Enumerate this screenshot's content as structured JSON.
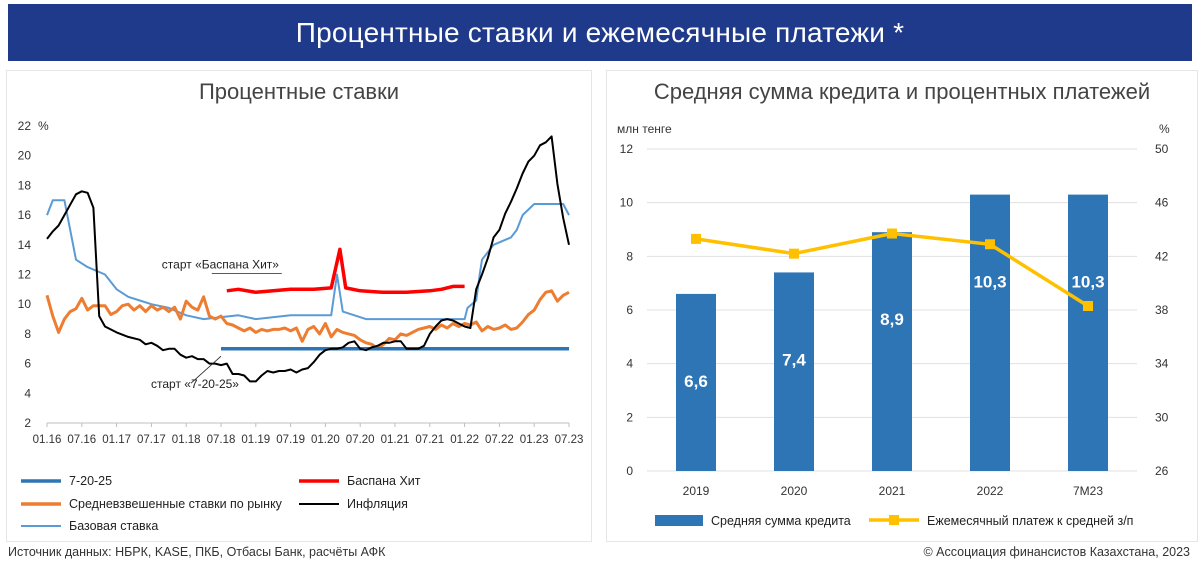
{
  "header": {
    "title": "Процентные ставки и ежемесячные платежи *"
  },
  "footer": {
    "source": "Источник данных: НБРК, KASE, ПКБ, Отбасы Банк, расчёты АФК",
    "copyright": "© Ассоциация финансистов Казахстана, 2023"
  },
  "colors": {
    "banner": "#1f3a8a",
    "seven_20_25": "#2e75b6",
    "baspana": "#ff0000",
    "market": "#ed7d31",
    "inflation": "#000000",
    "base_rate": "#5b9bd5",
    "bar": "#2e75b6",
    "payment": "#ffc000"
  },
  "chart_data": [
    {
      "type": "line",
      "title": "Процентные ставки",
      "unit_label": "%",
      "ylim": [
        2,
        22
      ],
      "yticks": [
        "2",
        "4",
        "6",
        "8",
        "10",
        "12",
        "14",
        "16",
        "18",
        "20",
        "22"
      ],
      "x_ticks": [
        "01.16",
        "07.16",
        "01.17",
        "07.17",
        "01.18",
        "07.18",
        "01.19",
        "07.19",
        "01.20",
        "07.20",
        "01.21",
        "07.21",
        "01.22",
        "07.22",
        "01.23",
        "07.23"
      ],
      "grid": false,
      "legend_position": "bottom",
      "annotations": [
        {
          "text": "старт «Баспана Хит»",
          "x": "08.18",
          "y": 11.4
        },
        {
          "text": "старт «7-20-25»",
          "x": "07.18",
          "y": 6.5
        }
      ],
      "series": [
        {
          "name": "7-20-25",
          "color_key": "seven_20_25",
          "points": [
            [
              30,
              7
            ],
            [
              90,
              7
            ]
          ]
        },
        {
          "name": "Баспана Хит",
          "color_key": "baspana",
          "points": [
            [
              31,
              10.9
            ],
            [
              33,
              11.0
            ],
            [
              36,
              10.8
            ],
            [
              39,
              10.9
            ],
            [
              42,
              11.0
            ],
            [
              46,
              11.0
            ],
            [
              49,
              11.1
            ],
            [
              50.5,
              13.7
            ],
            [
              51.5,
              11.1
            ],
            [
              54,
              10.9
            ],
            [
              58,
              10.8
            ],
            [
              62,
              10.8
            ],
            [
              66,
              10.9
            ],
            [
              68,
              11.0
            ],
            [
              70,
              11.2
            ],
            [
              72,
              11.2
            ]
          ]
        },
        {
          "name": "Средневзвешенные ставки по рынку",
          "color_key": "market",
          "points": [
            [
              0,
              10.6
            ],
            [
              1,
              9.2
            ],
            [
              2,
              8.1
            ],
            [
              3,
              9.0
            ],
            [
              4,
              9.5
            ],
            [
              5,
              9.7
            ],
            [
              6,
              10.4
            ],
            [
              7,
              9.6
            ],
            [
              8,
              9.9
            ],
            [
              10,
              9.9
            ],
            [
              11,
              9.3
            ],
            [
              12,
              9.5
            ],
            [
              13,
              9.9
            ],
            [
              14,
              10.0
            ],
            [
              15,
              9.6
            ],
            [
              16,
              9.9
            ],
            [
              17,
              9.5
            ],
            [
              18,
              9.9
            ],
            [
              19,
              9.6
            ],
            [
              20,
              9.8
            ],
            [
              21,
              9.5
            ],
            [
              22,
              9.8
            ],
            [
              23,
              9.0
            ],
            [
              24,
              10.2
            ],
            [
              25,
              9.8
            ],
            [
              26,
              9.6
            ],
            [
              27,
              10.5
            ],
            [
              28,
              9.2
            ],
            [
              29,
              9.0
            ],
            [
              30,
              9.2
            ],
            [
              31,
              8.7
            ],
            [
              32,
              8.6
            ],
            [
              33,
              8.4
            ],
            [
              34,
              8.2
            ],
            [
              35,
              8.4
            ],
            [
              36,
              8.1
            ],
            [
              37,
              8.3
            ],
            [
              38,
              8.2
            ],
            [
              39,
              8.3
            ],
            [
              40,
              8.3
            ],
            [
              41,
              8.4
            ],
            [
              42,
              8.2
            ],
            [
              43,
              8.4
            ],
            [
              44,
              7.5
            ],
            [
              45,
              8.3
            ],
            [
              46,
              8.5
            ],
            [
              47,
              8.0
            ],
            [
              48,
              8.7
            ],
            [
              49,
              7.8
            ],
            [
              50,
              8.3
            ],
            [
              51,
              8.1
            ],
            [
              52,
              8.0
            ],
            [
              53,
              7.9
            ],
            [
              54,
              7.6
            ],
            [
              55,
              7.4
            ],
            [
              56,
              7.3
            ],
            [
              57,
              7.0
            ],
            [
              58,
              7.3
            ],
            [
              59,
              7.7
            ],
            [
              60,
              7.6
            ],
            [
              61,
              8.0
            ],
            [
              62,
              7.9
            ],
            [
              63,
              8.1
            ],
            [
              64,
              8.3
            ],
            [
              65,
              8.4
            ],
            [
              66,
              8.5
            ],
            [
              67,
              8.3
            ],
            [
              68,
              8.6
            ],
            [
              69,
              8.4
            ],
            [
              70,
              8.7
            ],
            [
              71,
              8.5
            ],
            [
              72,
              8.7
            ],
            [
              73,
              8.6
            ],
            [
              74,
              8.8
            ],
            [
              75,
              8.2
            ],
            [
              76,
              8.5
            ],
            [
              77,
              8.3
            ],
            [
              78,
              8.4
            ],
            [
              79,
              8.6
            ],
            [
              80,
              8.3
            ],
            [
              81,
              8.4
            ],
            [
              82,
              8.8
            ],
            [
              83,
              9.3
            ],
            [
              84,
              9.6
            ],
            [
              85,
              10.3
            ],
            [
              86,
              10.8
            ],
            [
              87,
              10.9
            ],
            [
              88,
              10.2
            ],
            [
              89,
              10.6
            ],
            [
              90,
              10.8
            ]
          ]
        },
        {
          "name": "Инфляция",
          "color_key": "inflation",
          "points": [
            [
              0,
              14.4
            ],
            [
              1,
              14.9
            ],
            [
              2,
              15.3
            ],
            [
              3,
              16.0
            ],
            [
              4,
              16.7
            ],
            [
              5,
              17.4
            ],
            [
              6,
              17.6
            ],
            [
              7,
              17.5
            ],
            [
              8,
              16.5
            ],
            [
              9,
              9.2
            ],
            [
              10,
              8.5
            ],
            [
              12,
              8.1
            ],
            [
              14,
              7.8
            ],
            [
              16,
              7.6
            ],
            [
              17,
              7.3
            ],
            [
              18,
              7.4
            ],
            [
              19,
              7.2
            ],
            [
              20,
              6.9
            ],
            [
              21,
              7.0
            ],
            [
              22,
              7.0
            ],
            [
              23,
              6.6
            ],
            [
              24,
              6.4
            ],
            [
              25,
              6.5
            ],
            [
              26,
              6.3
            ],
            [
              27,
              6.3
            ],
            [
              28,
              6.0
            ],
            [
              29,
              6.0
            ],
            [
              30,
              5.9
            ],
            [
              31,
              6.0
            ],
            [
              32,
              5.3
            ],
            [
              33,
              5.3
            ],
            [
              34,
              5.2
            ],
            [
              35,
              4.8
            ],
            [
              36,
              4.8
            ],
            [
              37,
              5.2
            ],
            [
              38,
              5.5
            ],
            [
              39,
              5.4
            ],
            [
              40,
              5.5
            ],
            [
              41,
              5.5
            ],
            [
              42,
              5.6
            ],
            [
              43,
              5.4
            ],
            [
              44,
              5.6
            ],
            [
              45,
              5.7
            ],
            [
              46,
              6.1
            ],
            [
              47,
              6.6
            ],
            [
              48,
              6.9
            ],
            [
              49,
              7.0
            ],
            [
              50,
              7.0
            ],
            [
              51,
              7.1
            ],
            [
              52,
              7.4
            ],
            [
              53,
              7.5
            ],
            [
              54,
              7.0
            ],
            [
              55,
              6.9
            ],
            [
              56,
              7.1
            ],
            [
              57,
              7.2
            ],
            [
              58,
              7.4
            ],
            [
              59,
              7.4
            ],
            [
              60,
              7.5
            ],
            [
              61,
              7.5
            ],
            [
              62,
              7.0
            ],
            [
              63,
              7.0
            ],
            [
              64,
              7.0
            ],
            [
              65,
              7.2
            ],
            [
              66,
              8.0
            ],
            [
              67,
              8.5
            ],
            [
              68,
              8.9
            ],
            [
              69,
              9.0
            ],
            [
              70,
              8.9
            ],
            [
              71,
              8.7
            ],
            [
              72,
              8.5
            ],
            [
              73,
              8.4
            ],
            [
              74,
              11.0
            ],
            [
              75,
              12.0
            ],
            [
              76,
              13.1
            ],
            [
              77,
              14.5
            ],
            [
              78,
              15.0
            ],
            [
              79,
              16.1
            ],
            [
              80,
              16.9
            ],
            [
              81,
              17.8
            ],
            [
              82,
              18.8
            ],
            [
              83,
              19.6
            ],
            [
              84,
              20.0
            ],
            [
              85,
              20.7
            ],
            [
              86,
              20.9
            ],
            [
              87,
              21.3
            ],
            [
              88,
              18.1
            ],
            [
              89,
              15.8
            ],
            [
              90,
              14.0
            ]
          ]
        },
        {
          "name": "Базовая ставка",
          "color_key": "base_rate",
          "points": [
            [
              0,
              16
            ],
            [
              1,
              17
            ],
            [
              3,
              17
            ],
            [
              4,
              15
            ],
            [
              5,
              13
            ],
            [
              7,
              12.5
            ],
            [
              10,
              12
            ],
            [
              12,
              11
            ],
            [
              14,
              10.5
            ],
            [
              16,
              10.25
            ],
            [
              18,
              10
            ],
            [
              21,
              9.75
            ],
            [
              24,
              9.25
            ],
            [
              27,
              9.0
            ],
            [
              33,
              9.25
            ],
            [
              36,
              9.0
            ],
            [
              42,
              9.25
            ],
            [
              49,
              9.25
            ],
            [
              50,
              12.0
            ],
            [
              51,
              9.5
            ],
            [
              55,
              9.0
            ],
            [
              72,
              9.0
            ],
            [
              72.5,
              9.75
            ],
            [
              74,
              10.25
            ],
            [
              74.6,
              12.0
            ],
            [
              75,
              13.0
            ],
            [
              76,
              13.5
            ],
            [
              77,
              14.0
            ],
            [
              80,
              14.5
            ],
            [
              81,
              15.0
            ],
            [
              82,
              16.0
            ],
            [
              84,
              16.75
            ],
            [
              89,
              16.75
            ],
            [
              90,
              16.0
            ]
          ]
        }
      ]
    },
    {
      "type": "bar",
      "title": "Средняя сумма кредита и процентных платежей",
      "left_unit": "млн тенге",
      "right_unit": "%",
      "categories": [
        "2019",
        "2020",
        "2021",
        "2022",
        "7М23"
      ],
      "ylim_left": [
        0,
        12
      ],
      "ylim_right": [
        26,
        50
      ],
      "left_ticks": [
        "0",
        "2",
        "4",
        "6",
        "8",
        "10",
        "12"
      ],
      "right_ticks": [
        "26",
        "30",
        "34",
        "38",
        "42",
        "46",
        "50"
      ],
      "legend_position": "bottom",
      "series": [
        {
          "name": "Средняя сумма кредита",
          "axis": "left",
          "type": "bar",
          "values": [
            6.6,
            7.4,
            8.9,
            10.3,
            10.3
          ],
          "labels": [
            "6,6",
            "7,4",
            "8,9",
            "10,3",
            "10,3"
          ]
        },
        {
          "name": "Ежемесячный платеж к средней з/п",
          "axis": "right",
          "type": "line",
          "values": [
            43.3,
            42.2,
            43.7,
            42.9,
            38.3
          ]
        }
      ]
    }
  ]
}
